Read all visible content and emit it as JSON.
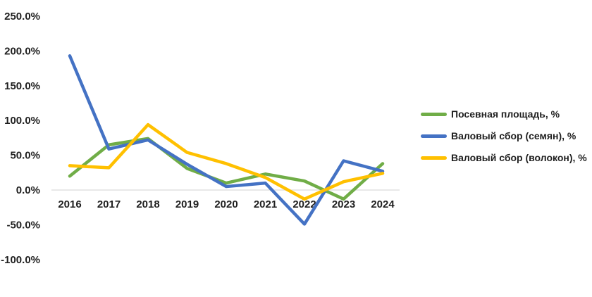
{
  "chart_data": {
    "type": "line",
    "title": "",
    "xlabel": "",
    "ylabel": "",
    "categories": [
      "2016",
      "2017",
      "2018",
      "2019",
      "2020",
      "2021",
      "2022",
      "2023",
      "2024"
    ],
    "series": [
      {
        "name": "Посевная площадь, %",
        "color": "#70AD47",
        "values": [
          20,
          65,
          74,
          31,
          10,
          23,
          13,
          -13,
          38
        ]
      },
      {
        "name": "Валовый сбор (семян), %",
        "color": "#4472C4",
        "values": [
          193,
          59,
          72,
          37,
          5,
          10,
          -49,
          42,
          27
        ]
      },
      {
        "name": "Валовый сбор (волокон), %",
        "color": "#FFC000",
        "values": [
          35,
          32,
          94,
          54,
          38,
          18,
          -13,
          12,
          24
        ]
      }
    ],
    "ylim": [
      -100,
      250
    ],
    "yticks": {
      "values": [
        250,
        200,
        150,
        100,
        50,
        0,
        -50,
        -100
      ],
      "labels": [
        "250.0%",
        "200.0%",
        "150.0%",
        "100.0%",
        "50.0%",
        "0.0%",
        "-50.0%",
        "-100.0%"
      ]
    },
    "grid": "zero-line-only",
    "legend_position": "right",
    "colors": {
      "gridline": "#D9D9D9",
      "axis_text": "#1f1f1f",
      "background": "#ffffff"
    }
  }
}
